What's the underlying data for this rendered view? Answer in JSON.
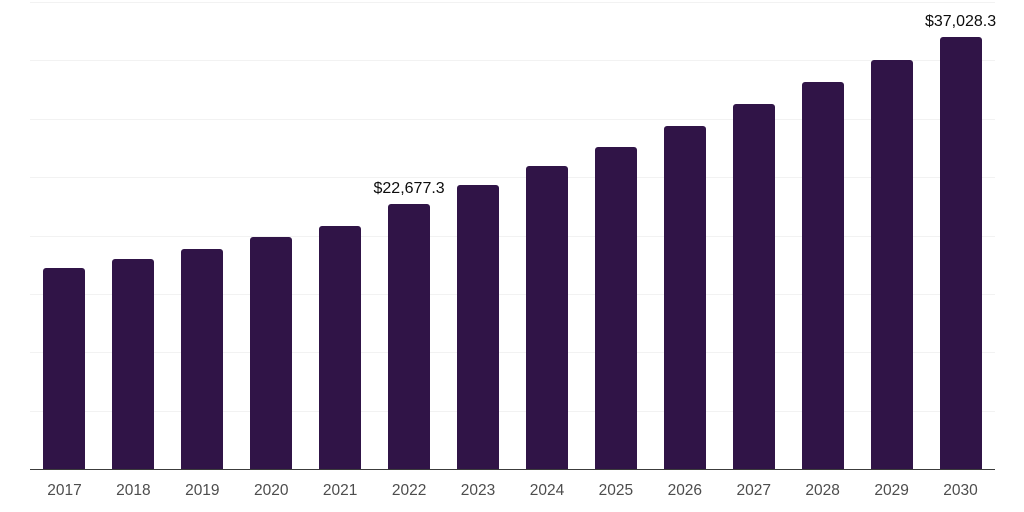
{
  "chart_data": {
    "type": "bar",
    "title": "",
    "xlabel": "",
    "ylabel": "",
    "categories": [
      "2017",
      "2018",
      "2019",
      "2020",
      "2021",
      "2022",
      "2023",
      "2024",
      "2025",
      "2026",
      "2027",
      "2028",
      "2029",
      "2030"
    ],
    "values": [
      17200,
      18000,
      18850,
      19850,
      20850,
      22677.3,
      24300,
      25950,
      27600,
      29350,
      31250,
      33150,
      35000,
      37028.3
    ],
    "data_labels": [
      {
        "category": "2022",
        "text": "$22,677.3"
      },
      {
        "category": "2030",
        "text": "$37,028.3"
      }
    ],
    "ylim": [
      0,
      40000
    ],
    "gridline_step": 5000,
    "grid": "horizontal-only",
    "y_tick_labels_shown": false,
    "legend": "none",
    "colors": {
      "bar": "#301447",
      "gridline": "#f2f2f2",
      "axis_line": "#3c3c3c",
      "tick_label": "#4d4d4d",
      "value_label": "#0d0d0d",
      "background": "#ffffff"
    }
  }
}
